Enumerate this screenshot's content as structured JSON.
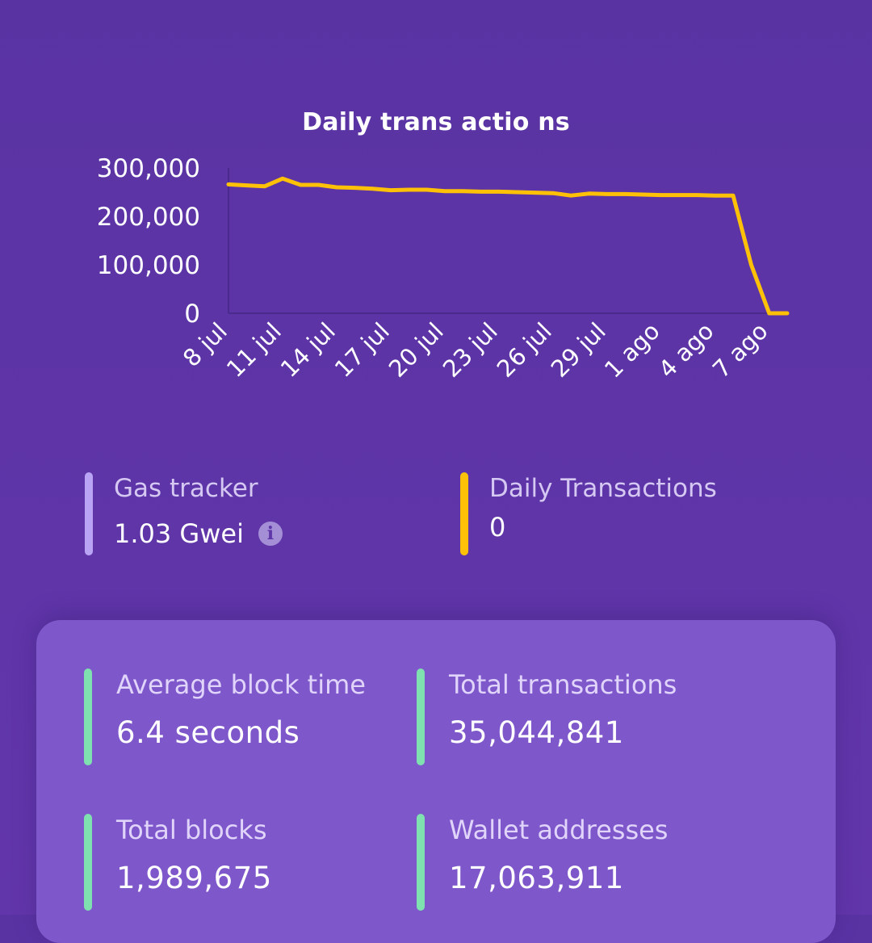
{
  "chart_data": {
    "type": "line",
    "title": "Daily trans actio ns",
    "x": [
      "8 jul",
      "9 jul",
      "10 jul",
      "11 jul",
      "12 jul",
      "13 jul",
      "14 jul",
      "15 jul",
      "16 jul",
      "17 jul",
      "18 jul",
      "19 jul",
      "20 jul",
      "21 jul",
      "22 jul",
      "23 jul",
      "24 jul",
      "25 jul",
      "26 jul",
      "27 jul",
      "28 jul",
      "29 jul",
      "30 jul",
      "31 jul",
      "1 ago",
      "2 ago",
      "3 ago",
      "4 ago",
      "5 ago",
      "6 ago",
      "7 ago",
      "8 ago"
    ],
    "x_tick_labels": [
      "8 jul",
      "11 jul",
      "14 jul",
      "17 jul",
      "20 jul",
      "23 jul",
      "26 jul",
      "29 jul",
      "1 ago",
      "4 ago",
      "7 ago"
    ],
    "series": [
      {
        "values": [
          266000,
          264000,
          262000,
          278000,
          265000,
          265000,
          260000,
          259000,
          257000,
          254000,
          255000,
          255000,
          252000,
          252000,
          251000,
          251000,
          250000,
          249000,
          248000,
          243000,
          247000,
          246000,
          246000,
          245000,
          244000,
          244000,
          244000,
          243000,
          243000,
          100000,
          0,
          0
        ]
      }
    ],
    "ylim": [
      0,
      300000
    ],
    "y_ticks": [
      0,
      100000,
      200000,
      300000
    ],
    "y_tick_labels": [
      "0",
      "100,000",
      "200,000",
      "300,000"
    ],
    "xlabel": "",
    "ylabel": "",
    "line_color": "#ffc107",
    "grid": false
  },
  "gas_tracker": {
    "label": "Gas tracker",
    "value": "1.03 Gwei",
    "icon": "info-icon",
    "icon_glyph": "i",
    "color": "#b9a3f5"
  },
  "daily_transactions": {
    "label": "Daily Transactions",
    "value": "0",
    "color": "#ffc107"
  },
  "stats_card": {
    "average_block_time": {
      "label": "Average block time",
      "value": "6.4 seconds"
    },
    "total_transactions": {
      "label": "Total transactions",
      "value": "35,044,841"
    },
    "total_blocks": {
      "label": "Total blocks",
      "value": "1,989,675"
    },
    "wallet_addresses": {
      "label": "Wallet addresses",
      "value": "17,063,911"
    },
    "accent_color": "#7fe0b0"
  }
}
